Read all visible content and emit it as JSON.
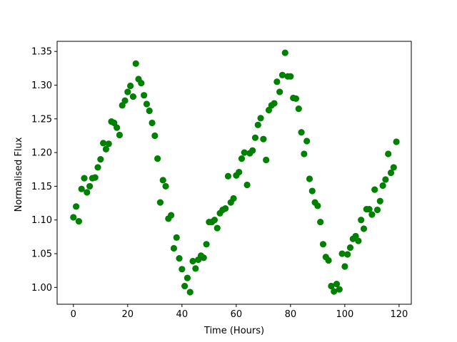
{
  "chart_data": {
    "type": "scatter",
    "title": "",
    "xlabel": "Time (Hours)",
    "ylabel": "Normalised Flux",
    "xlim": [
      -6,
      124.5
    ],
    "ylim": [
      0.975,
      1.365
    ],
    "xticks": [
      0,
      20,
      40,
      60,
      80,
      100,
      120
    ],
    "xtick_labels": [
      "0",
      "20",
      "40",
      "60",
      "80",
      "100",
      "120"
    ],
    "yticks": [
      1.0,
      1.05,
      1.1,
      1.15,
      1.2,
      1.25,
      1.3,
      1.35
    ],
    "ytick_labels": [
      "1.00",
      "1.05",
      "1.10",
      "1.15",
      "1.20",
      "1.25",
      "1.30",
      "1.35"
    ],
    "grid": false,
    "marker_color": "#008000",
    "series": [
      {
        "points": [
          [
            0,
            1.104
          ],
          [
            1,
            1.12
          ],
          [
            2,
            1.098
          ],
          [
            3,
            1.146
          ],
          [
            4,
            1.162
          ],
          [
            5,
            1.141
          ],
          [
            6,
            1.15
          ],
          [
            7,
            1.162
          ],
          [
            8,
            1.163
          ],
          [
            9,
            1.178
          ],
          [
            10,
            1.19
          ],
          [
            11,
            1.214
          ],
          [
            12,
            1.205
          ],
          [
            13,
            1.213
          ],
          [
            14,
            1.246
          ],
          [
            15,
            1.244
          ],
          [
            16,
            1.237
          ],
          [
            17,
            1.226
          ],
          [
            18,
            1.27
          ],
          [
            19,
            1.277
          ],
          [
            20,
            1.29
          ],
          [
            21,
            1.299
          ],
          [
            22,
            1.283
          ],
          [
            23,
            1.332
          ],
          [
            24,
            1.309
          ],
          [
            25,
            1.303
          ],
          [
            26,
            1.285
          ],
          [
            27,
            1.272
          ],
          [
            28,
            1.262
          ],
          [
            29,
            1.244
          ],
          [
            30,
            1.225
          ],
          [
            31,
            1.191
          ],
          [
            32,
            1.126
          ],
          [
            33,
            1.159
          ],
          [
            34,
            1.15
          ],
          [
            35,
            1.102
          ],
          [
            36,
            1.107
          ],
          [
            37,
            1.058
          ],
          [
            38,
            1.074
          ],
          [
            39,
            1.043
          ],
          [
            40,
            1.027
          ],
          [
            41,
            1.002
          ],
          [
            42,
            1.014
          ],
          [
            43,
            0.993
          ],
          [
            44,
            1.039
          ],
          [
            45,
            1.028
          ],
          [
            46,
            1.041
          ],
          [
            47,
            1.047
          ],
          [
            48,
            1.044
          ],
          [
            49,
            1.064
          ],
          [
            50,
            1.097
          ],
          [
            51,
            1.097
          ],
          [
            52,
            1.1
          ],
          [
            53,
            1.088
          ],
          [
            54,
            1.11
          ],
          [
            55,
            1.115
          ],
          [
            56,
            1.117
          ],
          [
            57,
            1.165
          ],
          [
            58,
            1.126
          ],
          [
            59,
            1.132
          ],
          [
            60,
            1.166
          ],
          [
            61,
            1.171
          ],
          [
            62,
            1.191
          ],
          [
            63,
            1.2
          ],
          [
            64,
            1.152
          ],
          [
            65,
            1.199
          ],
          [
            66,
            1.203
          ],
          [
            67,
            1.222
          ],
          [
            68,
            1.241
          ],
          [
            69,
            1.251
          ],
          [
            70,
            1.22
          ],
          [
            71,
            1.189
          ],
          [
            72,
            1.263
          ],
          [
            73,
            1.27
          ],
          [
            74,
            1.273
          ],
          [
            75,
            1.305
          ],
          [
            76,
            1.29
          ],
          [
            77,
            1.315
          ],
          [
            78,
            1.348
          ],
          [
            79,
            1.313
          ],
          [
            80,
            1.313
          ],
          [
            81,
            1.281
          ],
          [
            82,
            1.28
          ],
          [
            83,
            1.265
          ],
          [
            84,
            1.23
          ],
          [
            85,
            1.198
          ],
          [
            86,
            1.217
          ],
          [
            87,
            1.161
          ],
          [
            88,
            1.143
          ],
          [
            89,
            1.126
          ],
          [
            90,
            1.121
          ],
          [
            91,
            1.097
          ],
          [
            92,
            1.064
          ],
          [
            93,
            1.045
          ],
          [
            94,
            1.04
          ],
          [
            95,
            1.002
          ],
          [
            96,
            0.994
          ],
          [
            97,
            1.005
          ],
          [
            98,
            0.997
          ],
          [
            99,
            1.05
          ],
          [
            100,
            1.031
          ],
          [
            101,
            1.049
          ],
          [
            102,
            1.059
          ],
          [
            103,
            1.072
          ],
          [
            104,
            1.076
          ],
          [
            105,
            1.069
          ],
          [
            106,
            1.1
          ],
          [
            107,
            1.087
          ],
          [
            108,
            1.116
          ],
          [
            109,
            1.116
          ],
          [
            110,
            1.108
          ],
          [
            111,
            1.145
          ],
          [
            112,
            1.115
          ],
          [
            113,
            1.128
          ],
          [
            114,
            1.151
          ],
          [
            115,
            1.16
          ],
          [
            116,
            1.198
          ],
          [
            117,
            1.17
          ],
          [
            118,
            1.178
          ],
          [
            119,
            1.216
          ]
        ]
      }
    ]
  }
}
